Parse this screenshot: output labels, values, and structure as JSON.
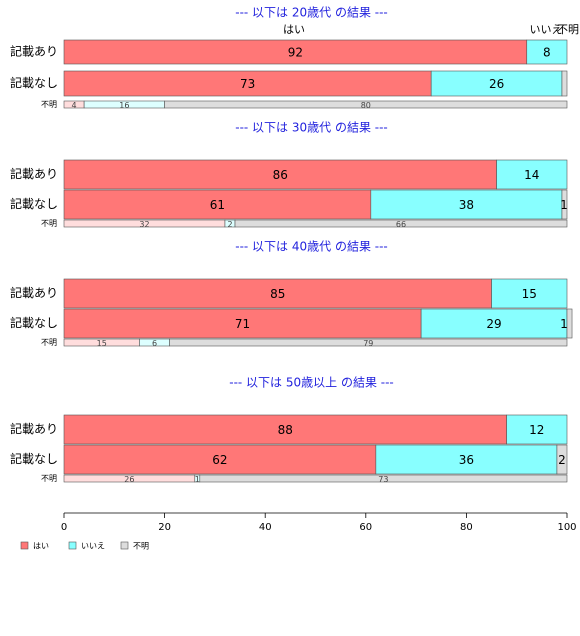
{
  "chart_data": {
    "type": "bar",
    "orientation": "horizontal",
    "stacked": true,
    "xlim": [
      0,
      100
    ],
    "x_ticks": [
      "0",
      "20",
      "40",
      "60",
      "80",
      "100"
    ],
    "colors": {
      "yes": "#ff7777",
      "no": "#88ffff",
      "unknown": "#dddddd",
      "unknown_row_yes": "#ffdddd",
      "unknown_row_no": "#ddffff",
      "title": "#2222dd"
    },
    "legend": {
      "placement": "bottom-left",
      "items": [
        "はい",
        "いいえ",
        "不明"
      ]
    },
    "column_labels": [
      "はい",
      "いいえ",
      "不明"
    ],
    "groups": [
      {
        "title": "--- 以下は 20歳代 の結果 ---",
        "rows": [
          {
            "label": "記載あり",
            "values": [
              92,
              8,
              0
            ],
            "value_labels": [
              "92",
              "8",
              ""
            ]
          },
          {
            "label": "記載なし",
            "values": [
              73,
              26,
              1
            ],
            "value_labels": [
              "73",
              "26",
              ""
            ]
          },
          {
            "label": "不明",
            "values": [
              4,
              16,
              80
            ],
            "value_labels": [
              "4",
              "16",
              "80"
            ]
          }
        ]
      },
      {
        "title": "--- 以下は 30歳代 の結果 ---",
        "rows": [
          {
            "label": "記載あり",
            "values": [
              86,
              14,
              0
            ],
            "value_labels": [
              "86",
              "14",
              ""
            ]
          },
          {
            "label": "記載なし",
            "values": [
              61,
              38,
              1
            ],
            "value_labels": [
              "61",
              "38",
              "1"
            ]
          },
          {
            "label": "不明",
            "values": [
              32,
              2,
              66
            ],
            "value_labels": [
              "32",
              "2",
              "66"
            ]
          }
        ]
      },
      {
        "title": "--- 以下は 40歳代 の結果 ---",
        "rows": [
          {
            "label": "記載あり",
            "values": [
              85,
              15,
              0
            ],
            "value_labels": [
              "85",
              "15",
              ""
            ]
          },
          {
            "label": "記載なし",
            "values": [
              71,
              29,
              1
            ],
            "value_labels": [
              "71",
              "29",
              "1"
            ]
          },
          {
            "label": "不明",
            "values": [
              15,
              6,
              79
            ],
            "value_labels": [
              "15",
              "6",
              "79"
            ]
          }
        ]
      },
      {
        "title": "--- 以下は 50歳以上 の結果 ---",
        "rows": [
          {
            "label": "記載あり",
            "values": [
              88,
              12,
              0
            ],
            "value_labels": [
              "88",
              "12",
              ""
            ]
          },
          {
            "label": "記載なし",
            "values": [
              62,
              36,
              2
            ],
            "value_labels": [
              "62",
              "36",
              "2"
            ]
          },
          {
            "label": "不明",
            "values": [
              26,
              1,
              73
            ],
            "value_labels": [
              "26",
              "1",
              "73"
            ]
          }
        ]
      }
    ]
  }
}
